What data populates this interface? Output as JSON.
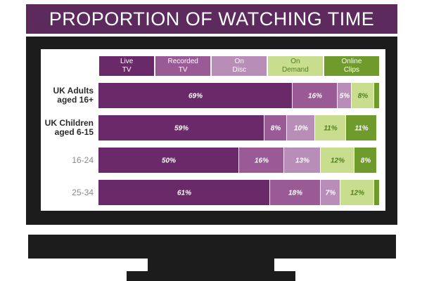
{
  "chart_data": {
    "type": "stacked-bar",
    "title": "PROPORTION OF WATCHING TIME",
    "categories": [
      "UK Adults aged 16+",
      "UK Children aged 6-15",
      "16-24",
      "25-34"
    ],
    "xlim": [
      0,
      100
    ],
    "series": [
      {
        "name": "Live TV",
        "color": "#6a2a69",
        "label_color": "#ffffff",
        "values": [
          69,
          59,
          50,
          61
        ],
        "value_labels": [
          "69%",
          "59%",
          "50%",
          "61%"
        ]
      },
      {
        "name": "Recorded TV",
        "color": "#9a5a95",
        "label_color": "#ffffff",
        "values": [
          16,
          8,
          16,
          18
        ],
        "value_labels": [
          "16%",
          "8%",
          "16%",
          "18%"
        ]
      },
      {
        "name": "On Disc",
        "color": "#b88db7",
        "label_color": "#ffffff",
        "values": [
          5,
          10,
          13,
          7
        ],
        "value_labels": [
          "5%",
          "10%",
          "13%",
          "7%"
        ]
      },
      {
        "name": "On Demand",
        "color": "#c8de8e",
        "label_color": "#4f7f1c",
        "values": [
          8,
          11,
          12,
          12
        ],
        "value_labels": [
          "8%",
          "11%",
          "12%",
          "12%"
        ]
      },
      {
        "name": "Online Clips",
        "color": "#6f9b2c",
        "label_color": "#ffffff",
        "values": [
          2,
          11,
          8,
          2
        ],
        "value_labels": [
          null,
          "11%",
          "8%",
          null
        ]
      }
    ]
  }
}
